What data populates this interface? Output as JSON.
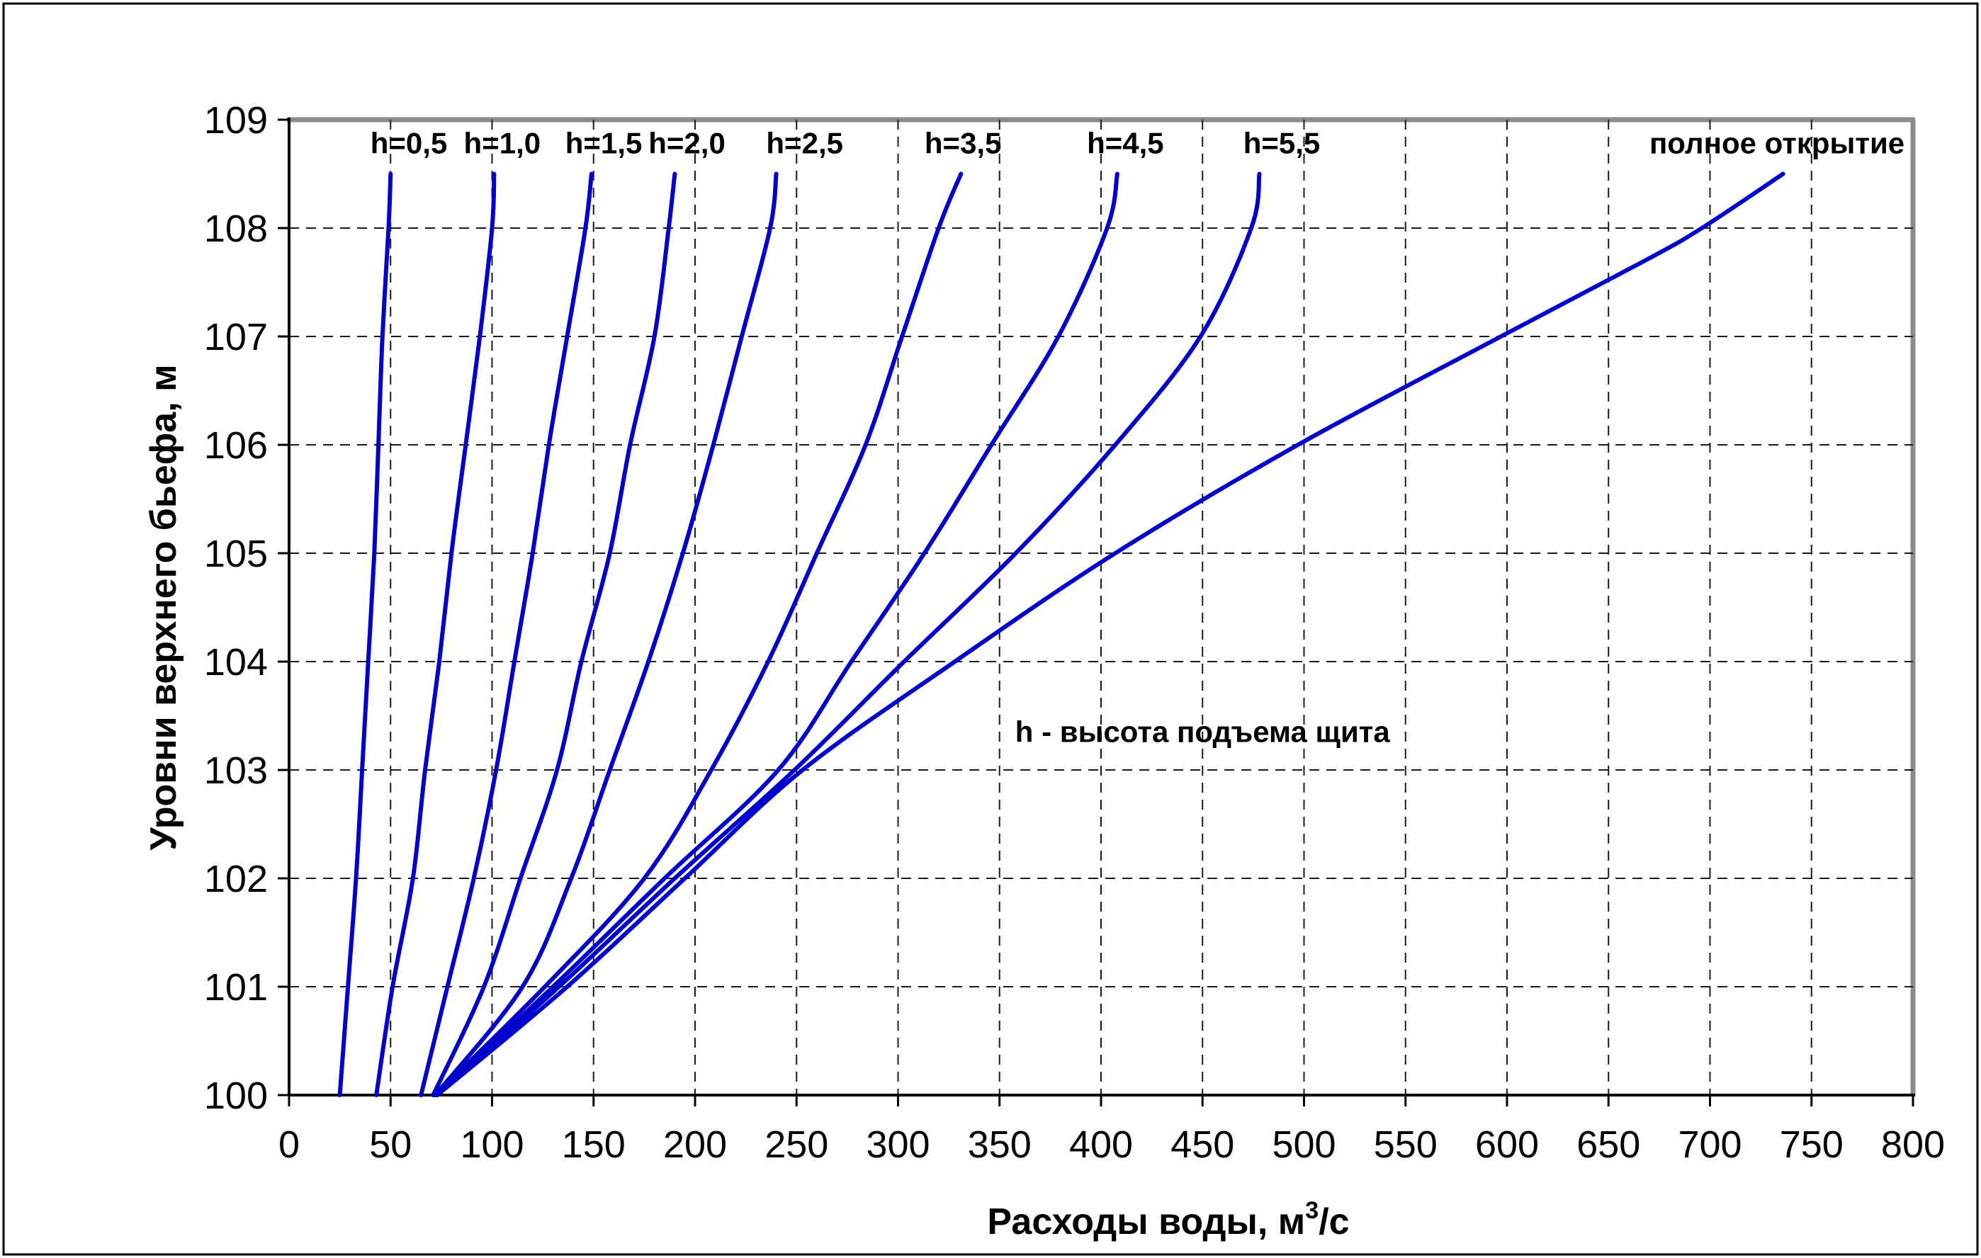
{
  "chart_data": {
    "type": "line",
    "title": "",
    "xlabel_prefix": "Расходы воды, м",
    "xlabel_sup": "3",
    "xlabel_suffix": "/с",
    "ylabel": "Уровни верхнего бьефа, м",
    "xlim": [
      0,
      800
    ],
    "ylim": [
      100,
      109
    ],
    "xticks": [
      0,
      50,
      100,
      150,
      200,
      250,
      300,
      350,
      400,
      450,
      500,
      550,
      600,
      650,
      700,
      750,
      800
    ],
    "yticks": [
      100,
      101,
      102,
      103,
      104,
      105,
      106,
      107,
      108,
      109
    ],
    "grid": "dashed",
    "legend_position": "none",
    "line_color": "#0000CC",
    "grid_color": "#1a1a1a",
    "frame_gray": "#8c8c8c",
    "axis_color": "#000000",
    "annotation": {
      "text": "h - высота подъема щита",
      "x": 450,
      "y": 103.35
    },
    "curve_label_level": 108.78,
    "series": [
      {
        "name": "h=0,5",
        "label_x": 59,
        "points": [
          [
            25,
            100
          ],
          [
            29,
            101
          ],
          [
            33,
            102
          ],
          [
            36,
            103
          ],
          [
            39,
            104
          ],
          [
            42,
            105
          ],
          [
            44,
            106
          ],
          [
            46,
            107
          ],
          [
            49,
            108
          ],
          [
            50,
            108.5
          ]
        ]
      },
      {
        "name": "h=1,0",
        "label_x": 105,
        "points": [
          [
            43,
            100
          ],
          [
            51,
            101
          ],
          [
            61,
            102
          ],
          [
            67,
            103
          ],
          [
            74,
            104
          ],
          [
            80,
            105
          ],
          [
            87,
            106
          ],
          [
            94,
            107
          ],
          [
            100,
            108
          ],
          [
            101,
            108.5
          ]
        ]
      },
      {
        "name": "h=1,5",
        "label_x": 155,
        "points": [
          [
            65,
            100
          ],
          [
            78,
            101
          ],
          [
            91,
            102
          ],
          [
            102,
            103
          ],
          [
            111,
            104
          ],
          [
            120,
            105
          ],
          [
            128,
            106
          ],
          [
            137,
            107
          ],
          [
            146,
            108
          ],
          [
            149,
            108.5
          ]
        ]
      },
      {
        "name": "h=2,0",
        "label_x": 196,
        "points": [
          [
            71,
            100
          ],
          [
            96,
            101
          ],
          [
            114,
            102
          ],
          [
            132,
            103
          ],
          [
            144,
            104
          ],
          [
            158,
            105
          ],
          [
            168,
            106
          ],
          [
            180,
            107
          ],
          [
            187,
            108
          ],
          [
            190,
            108.5
          ]
        ]
      },
      {
        "name": "h=2,5",
        "label_x": 254,
        "points": [
          [
            72,
            100
          ],
          [
            115,
            101
          ],
          [
            139,
            102
          ],
          [
            158,
            103
          ],
          [
            177,
            104
          ],
          [
            194,
            105
          ],
          [
            209,
            106
          ],
          [
            223,
            107
          ],
          [
            237,
            108
          ],
          [
            240,
            108.5
          ]
        ]
      },
      {
        "name": "h=3,5",
        "label_x": 332,
        "points": [
          [
            72,
            100
          ],
          [
            126,
            101
          ],
          [
            175,
            102
          ],
          [
            208,
            103
          ],
          [
            236,
            104
          ],
          [
            260,
            105
          ],
          [
            284,
            106
          ],
          [
            302,
            107
          ],
          [
            320,
            108
          ],
          [
            331,
            108.5
          ]
        ]
      },
      {
        "name": "h=4,5",
        "label_x": 412,
        "points": [
          [
            73,
            100
          ],
          [
            130,
            101
          ],
          [
            185,
            102
          ],
          [
            241,
            103
          ],
          [
            277,
            104
          ],
          [
            313,
            105
          ],
          [
            346,
            106
          ],
          [
            379,
            107
          ],
          [
            403,
            108
          ],
          [
            408,
            108.5
          ]
        ]
      },
      {
        "name": "h=5,5",
        "label_x": 489,
        "points": [
          [
            73,
            100
          ],
          [
            133,
            101
          ],
          [
            190,
            102
          ],
          [
            249,
            103
          ],
          [
            303,
            104
          ],
          [
            358,
            105
          ],
          [
            407,
            106
          ],
          [
            449,
            107
          ],
          [
            474,
            108
          ],
          [
            478,
            108.5
          ]
        ]
      },
      {
        "name": "полное открытие",
        "label_x": 733,
        "points": [
          [
            73,
            100
          ],
          [
            137,
            101
          ],
          [
            195,
            102
          ],
          [
            253,
            103
          ],
          [
            328,
            104
          ],
          [
            407,
            105
          ],
          [
            497,
            106
          ],
          [
            597,
            107
          ],
          [
            668,
            107.7
          ],
          [
            696,
            108
          ],
          [
            736,
            108.5
          ]
        ]
      }
    ]
  }
}
